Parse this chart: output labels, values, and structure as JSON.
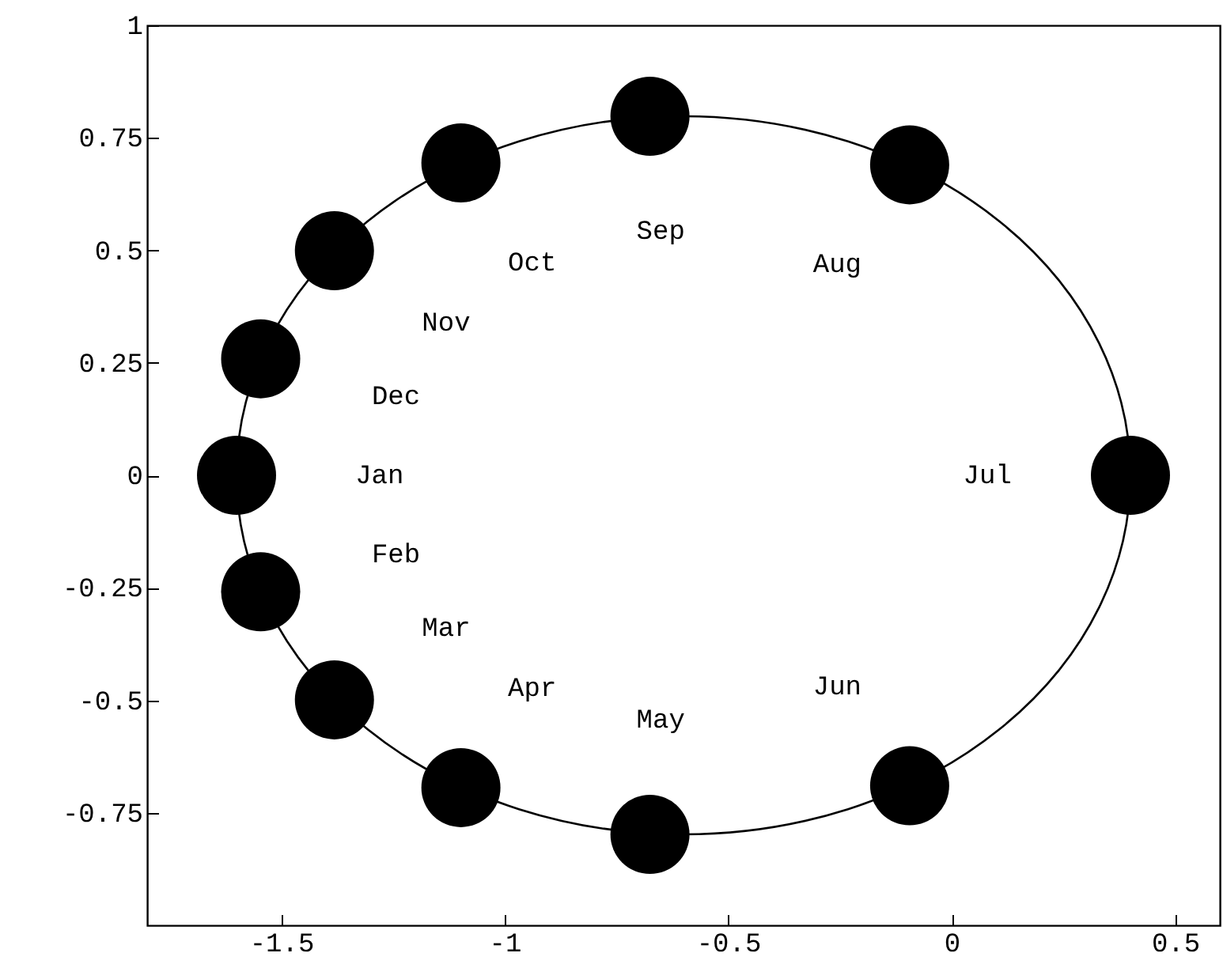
{
  "chart_data": {
    "type": "scatter",
    "xlim": [
      -1.8,
      0.6
    ],
    "ylim": [
      -1,
      1
    ],
    "xticks": [
      -1.5,
      -1,
      -0.5,
      0,
      0.5
    ],
    "yticks": [
      -0.75,
      -0.5,
      -0.25,
      0,
      0.25,
      0.5,
      0.75,
      1
    ],
    "grid": false,
    "marker": "circle",
    "series": [
      {
        "color": "#000000",
        "x": [
          0.4,
          -0.094,
          -0.675,
          -1.098,
          -1.381,
          -1.546,
          -1.6,
          -1.546,
          -1.381,
          -1.098,
          -0.675,
          -0.094
        ],
        "values": [
          0,
          0.69,
          0.798,
          0.694,
          0.499,
          0.259,
          0,
          -0.259,
          -0.499,
          -0.694,
          -0.798,
          -0.69
        ]
      }
    ],
    "annotations": [
      "Jul",
      "Aug",
      "Sep",
      "Oct",
      "Nov",
      "Dec",
      "Jan",
      "Feb",
      "Mar",
      "Apr",
      "May",
      "Jun"
    ]
  }
}
